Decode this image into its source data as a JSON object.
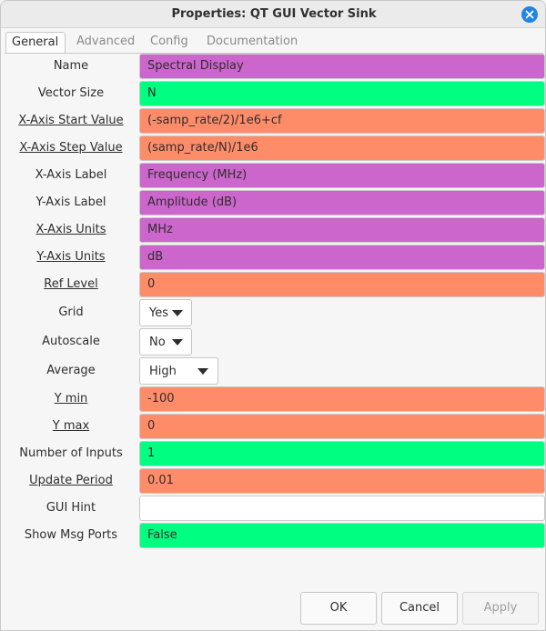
{
  "window": {
    "title": "Properties: QT GUI Vector Sink"
  },
  "tabs": [
    {
      "label": "General",
      "active": true
    },
    {
      "label": "Advanced",
      "active": false
    },
    {
      "label": "Config",
      "active": false
    },
    {
      "label": "Documentation",
      "active": false
    }
  ],
  "colors": {
    "string": "#cc66cc",
    "int": "#00ff80",
    "float": "#ff8c69",
    "empty": "#ffffff"
  },
  "params": [
    {
      "label": "Name",
      "value": "Spectral Display",
      "type": "string",
      "underline": false
    },
    {
      "label": "Vector Size",
      "value": "N",
      "type": "int",
      "underline": false
    },
    {
      "label": "X-Axis Start Value",
      "value": "(-samp_rate/2)/1e6+cf",
      "type": "float",
      "underline": true
    },
    {
      "label": "X-Axis Step Value",
      "value": "(samp_rate/N)/1e6",
      "type": "float",
      "underline": true
    },
    {
      "label": "X-Axis Label",
      "value": "Frequency (MHz)",
      "type": "string",
      "underline": false
    },
    {
      "label": "Y-Axis Label",
      "value": "Amplitude (dB)",
      "type": "string",
      "underline": false
    },
    {
      "label": "X-Axis Units",
      "value": "MHz",
      "type": "string",
      "underline": true
    },
    {
      "label": "Y-Axis Units",
      "value": "dB",
      "type": "string",
      "underline": true
    },
    {
      "label": "Ref Level",
      "value": "0",
      "type": "float",
      "underline": true
    },
    {
      "label": "Grid",
      "value": "Yes",
      "type": "combo"
    },
    {
      "label": "Autoscale",
      "value": "No",
      "type": "combo"
    },
    {
      "label": "Average",
      "value": "High",
      "type": "combo"
    },
    {
      "label": "Y min",
      "value": "-100",
      "type": "float",
      "underline": true
    },
    {
      "label": "Y max",
      "value": "0",
      "type": "float",
      "underline": true
    },
    {
      "label": "Number of Inputs",
      "value": "1",
      "type": "int",
      "underline": false
    },
    {
      "label": "Update Period",
      "value": "0.01",
      "type": "float",
      "underline": true
    },
    {
      "label": "GUI Hint",
      "value": "",
      "type": "empty",
      "underline": false
    },
    {
      "label": "Show Msg Ports",
      "value": "False",
      "type": "int",
      "underline": false
    }
  ],
  "buttons": {
    "ok": "OK",
    "cancel": "Cancel",
    "apply": "Apply"
  }
}
